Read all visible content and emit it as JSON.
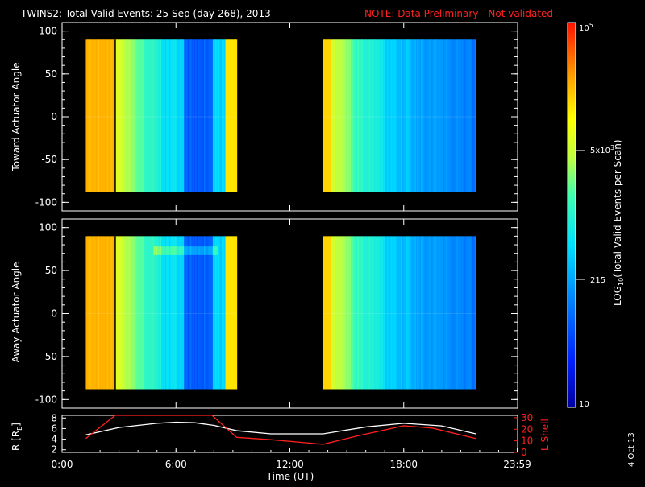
{
  "header": {
    "title": "TWINS2: Total Valid Events: 25 Sep (day 268), 2013",
    "note": "NOTE: Data Preliminary - Not validated"
  },
  "panels": [
    {
      "ylabel": "Toward Actuator Angle"
    },
    {
      "ylabel": "Away Actuator Angle"
    }
  ],
  "bottom": {
    "left_label": "R [R",
    "left_label_sub": "E",
    "left_label_end": "]",
    "right_label": "L Shell",
    "xlabel": "Time (UT)",
    "date_stamp": "4 Oct 13"
  },
  "colorbar": {
    "label_main": "LOG",
    "label_sub": "10",
    "label_rest": "(Total Valid Events per Scan)",
    "ticks": [
      {
        "base": "10",
        "sup": "5"
      },
      {
        "base": "5x10",
        "sup": "3"
      },
      {
        "base": "215",
        "sup": ""
      },
      {
        "base": "10",
        "sup": ""
      }
    ]
  },
  "chart_data": [
    {
      "type": "heatmap",
      "title": "TWINS2: Total Valid Events: 25 Sep (day 268), 2013",
      "ylabel": "Toward Actuator Angle",
      "ylim": [
        -110,
        110
      ],
      "yticks": [
        "100",
        "50",
        "0",
        "-50",
        "-100"
      ],
      "xlim": [
        0,
        24
      ],
      "data_coverage_hours": [
        [
          1.25,
          9.2
        ],
        [
          13.75,
          21.8
        ]
      ],
      "gap_marker_hour": 2.8,
      "angle_range": [
        -88,
        90
      ]
    },
    {
      "type": "heatmap",
      "ylabel": "Away Actuator Angle",
      "ylim": [
        -110,
        110
      ],
      "yticks": [
        "100",
        "50",
        "0",
        "-50",
        "-100"
      ],
      "xlim": [
        0,
        24
      ],
      "data_coverage_hours": [
        [
          1.25,
          9.2
        ],
        [
          13.75,
          21.8
        ]
      ],
      "gap_marker_hour": 2.8,
      "angle_range": [
        -88,
        90
      ]
    },
    {
      "type": "line",
      "xlabel": "Time (UT)",
      "xlim": [
        0,
        24
      ],
      "xticks": [
        "0:00",
        "6:00",
        "12:00",
        "18:00",
        "23:59"
      ],
      "left_yticks": [
        "8",
        "6",
        "4",
        "2"
      ],
      "right_yticks": [
        "30",
        "20",
        "10",
        "0"
      ],
      "series": [
        {
          "name": "R [RE]",
          "axis": "left",
          "x": [
            1.25,
            3,
            5,
            6,
            7,
            8,
            9.2,
            11,
            13.75,
            16,
            18,
            20,
            21.8
          ],
          "y": [
            4.8,
            6.2,
            7.0,
            7.2,
            7.1,
            6.6,
            5.6,
            5.0,
            5.0,
            6.3,
            7.0,
            6.5,
            5.0
          ]
        },
        {
          "name": "L Shell",
          "axis": "right",
          "x": [
            1.25,
            2.8,
            7.9,
            9.2,
            11,
            13.75,
            15.5,
            18,
            19.5,
            21.8
          ],
          "y": [
            12,
            32,
            32,
            13,
            11,
            7,
            14,
            23,
            21,
            12
          ]
        }
      ]
    }
  ]
}
